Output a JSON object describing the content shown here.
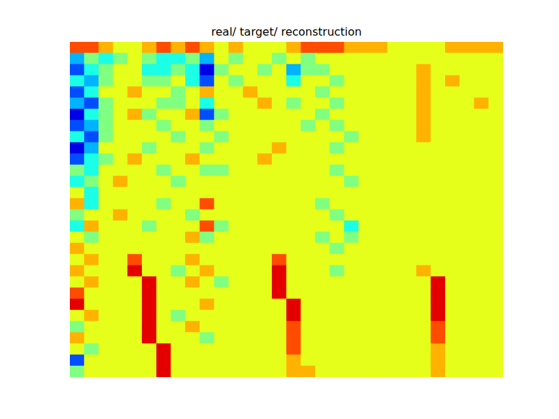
{
  "chart_data": {
    "type": "heatmap",
    "title": "real/ target/ reconstruction",
    "tick_labels": false,
    "color_range": [
      0,
      10
    ],
    "cells": [
      [
        8,
        8,
        7,
        6,
        6,
        7,
        8,
        7,
        8,
        7,
        6,
        7,
        6,
        6,
        6,
        7,
        8,
        8,
        8,
        7,
        7,
        7,
        6,
        6,
        6,
        6,
        7,
        7,
        7,
        7
      ],
      [
        3,
        5,
        4,
        5,
        6,
        5,
        4,
        4,
        5,
        3,
        6,
        5,
        6,
        6,
        5,
        6,
        5,
        6,
        6,
        6,
        6,
        6,
        6,
        6,
        6,
        6,
        6,
        6,
        6,
        6
      ],
      [
        2,
        4,
        5,
        6,
        6,
        4,
        4,
        5,
        4,
        1,
        5,
        6,
        6,
        5,
        6,
        3,
        5,
        5,
        6,
        6,
        6,
        6,
        6,
        6,
        7,
        6,
        6,
        6,
        6,
        6
      ],
      [
        4,
        3,
        5,
        6,
        6,
        5,
        5,
        6,
        4,
        2,
        6,
        5,
        6,
        6,
        6,
        4,
        6,
        6,
        5,
        6,
        6,
        6,
        6,
        6,
        7,
        6,
        7,
        6,
        6,
        6
      ],
      [
        2,
        4,
        6,
        6,
        7,
        6,
        6,
        5,
        6,
        7,
        6,
        6,
        7,
        6,
        6,
        6,
        6,
        5,
        6,
        6,
        6,
        6,
        6,
        6,
        7,
        6,
        6,
        6,
        6,
        6
      ],
      [
        3,
        2,
        5,
        6,
        6,
        6,
        5,
        5,
        6,
        4,
        6,
        6,
        6,
        7,
        6,
        5,
        6,
        6,
        5,
        6,
        6,
        6,
        6,
        6,
        7,
        6,
        6,
        6,
        7,
        6
      ],
      [
        1,
        4,
        5,
        6,
        7,
        5,
        6,
        6,
        7,
        2,
        5,
        6,
        6,
        6,
        6,
        6,
        6,
        5,
        6,
        6,
        6,
        6,
        6,
        6,
        7,
        6,
        6,
        6,
        6,
        6
      ],
      [
        2,
        3,
        5,
        6,
        6,
        6,
        5,
        6,
        6,
        5,
        6,
        6,
        6,
        6,
        6,
        6,
        5,
        6,
        5,
        6,
        6,
        6,
        6,
        6,
        7,
        6,
        6,
        6,
        6,
        6
      ],
      [
        4,
        2,
        5,
        6,
        6,
        6,
        6,
        5,
        6,
        6,
        5,
        6,
        6,
        6,
        6,
        6,
        6,
        6,
        6,
        5,
        6,
        6,
        6,
        6,
        7,
        6,
        6,
        6,
        6,
        6
      ],
      [
        1,
        3,
        6,
        6,
        6,
        5,
        6,
        6,
        6,
        5,
        6,
        6,
        6,
        6,
        7,
        6,
        6,
        6,
        5,
        6,
        6,
        6,
        6,
        6,
        6,
        6,
        6,
        6,
        6,
        6
      ],
      [
        2,
        4,
        5,
        6,
        7,
        6,
        6,
        6,
        7,
        6,
        6,
        6,
        6,
        7,
        6,
        6,
        6,
        6,
        6,
        6,
        6,
        6,
        6,
        6,
        6,
        6,
        6,
        6,
        6,
        6
      ],
      [
        5,
        4,
        6,
        6,
        6,
        6,
        5,
        6,
        6,
        5,
        5,
        6,
        6,
        6,
        6,
        6,
        6,
        6,
        5,
        6,
        6,
        6,
        6,
        6,
        6,
        6,
        6,
        6,
        6,
        6
      ],
      [
        4,
        5,
        6,
        7,
        6,
        6,
        6,
        5,
        6,
        6,
        6,
        6,
        6,
        6,
        6,
        6,
        6,
        6,
        6,
        5,
        6,
        6,
        6,
        6,
        6,
        6,
        6,
        6,
        6,
        6
      ],
      [
        6,
        4,
        6,
        6,
        6,
        6,
        6,
        6,
        6,
        6,
        6,
        6,
        6,
        6,
        6,
        6,
        6,
        6,
        6,
        6,
        6,
        6,
        6,
        6,
        6,
        6,
        6,
        6,
        6,
        6
      ],
      [
        7,
        4,
        6,
        6,
        6,
        6,
        5,
        6,
        6,
        8,
        6,
        6,
        6,
        6,
        6,
        6,
        6,
        5,
        6,
        6,
        6,
        6,
        6,
        6,
        6,
        6,
        6,
        6,
        6,
        6
      ],
      [
        5,
        6,
        6,
        7,
        6,
        6,
        6,
        6,
        5,
        6,
        6,
        6,
        6,
        6,
        6,
        6,
        6,
        6,
        5,
        6,
        6,
        6,
        6,
        6,
        6,
        6,
        6,
        6,
        6,
        6
      ],
      [
        4,
        7,
        6,
        6,
        6,
        5,
        6,
        6,
        6,
        8,
        5,
        6,
        6,
        6,
        6,
        6,
        6,
        6,
        6,
        4,
        6,
        6,
        6,
        6,
        6,
        6,
        6,
        6,
        6,
        6
      ],
      [
        6,
        5,
        6,
        6,
        6,
        6,
        6,
        6,
        7,
        5,
        6,
        6,
        6,
        6,
        6,
        6,
        6,
        5,
        6,
        5,
        6,
        6,
        6,
        6,
        6,
        6,
        6,
        6,
        6,
        6
      ],
      [
        7,
        6,
        6,
        6,
        6,
        6,
        6,
        6,
        6,
        6,
        6,
        6,
        6,
        6,
        6,
        6,
        6,
        6,
        5,
        6,
        6,
        6,
        6,
        6,
        6,
        6,
        6,
        6,
        6,
        6
      ],
      [
        6,
        7,
        6,
        6,
        8,
        6,
        6,
        6,
        7,
        6,
        6,
        6,
        6,
        6,
        8,
        6,
        6,
        6,
        6,
        6,
        6,
        6,
        6,
        6,
        6,
        6,
        6,
        6,
        6,
        6
      ],
      [
        7,
        6,
        6,
        6,
        9,
        6,
        6,
        5,
        6,
        7,
        6,
        6,
        6,
        6,
        9,
        6,
        6,
        6,
        5,
        6,
        6,
        6,
        6,
        6,
        7,
        6,
        6,
        6,
        6,
        6
      ],
      [
        6,
        7,
        6,
        6,
        6,
        9,
        6,
        6,
        7,
        6,
        5,
        6,
        6,
        6,
        9,
        6,
        6,
        6,
        6,
        6,
        6,
        6,
        6,
        6,
        6,
        9,
        6,
        6,
        6,
        6
      ],
      [
        8,
        6,
        6,
        6,
        6,
        9,
        6,
        6,
        6,
        6,
        6,
        6,
        6,
        6,
        9,
        6,
        6,
        6,
        6,
        6,
        6,
        6,
        6,
        6,
        6,
        9,
        6,
        6,
        6,
        6
      ],
      [
        9,
        6,
        6,
        6,
        6,
        9,
        6,
        6,
        6,
        7,
        6,
        6,
        6,
        6,
        6,
        9,
        6,
        6,
        6,
        6,
        6,
        6,
        6,
        6,
        6,
        9,
        6,
        6,
        6,
        6
      ],
      [
        6,
        7,
        6,
        6,
        6,
        9,
        6,
        5,
        6,
        6,
        6,
        6,
        6,
        6,
        6,
        9,
        6,
        6,
        6,
        6,
        6,
        6,
        6,
        6,
        6,
        9,
        6,
        6,
        6,
        6
      ],
      [
        5,
        6,
        6,
        6,
        6,
        9,
        6,
        6,
        7,
        6,
        6,
        6,
        6,
        6,
        6,
        8,
        6,
        6,
        6,
        6,
        6,
        6,
        6,
        6,
        6,
        8,
        6,
        6,
        6,
        6
      ],
      [
        7,
        6,
        6,
        6,
        6,
        9,
        6,
        6,
        6,
        5,
        6,
        6,
        6,
        6,
        6,
        8,
        6,
        6,
        6,
        6,
        6,
        6,
        6,
        6,
        6,
        8,
        6,
        6,
        6,
        6
      ],
      [
        6,
        5,
        6,
        6,
        6,
        6,
        9,
        6,
        6,
        6,
        6,
        6,
        6,
        6,
        6,
        8,
        6,
        6,
        6,
        6,
        6,
        6,
        6,
        6,
        6,
        7,
        6,
        6,
        6,
        6
      ],
      [
        2,
        6,
        6,
        6,
        6,
        6,
        9,
        6,
        6,
        6,
        6,
        6,
        6,
        6,
        6,
        7,
        6,
        6,
        6,
        6,
        6,
        6,
        6,
        6,
        6,
        7,
        6,
        6,
        6,
        6
      ],
      [
        5,
        6,
        6,
        6,
        6,
        6,
        9,
        6,
        6,
        6,
        6,
        6,
        6,
        6,
        6,
        7,
        7,
        6,
        6,
        6,
        6,
        6,
        6,
        6,
        6,
        7,
        6,
        6,
        6,
        6
      ]
    ]
  }
}
